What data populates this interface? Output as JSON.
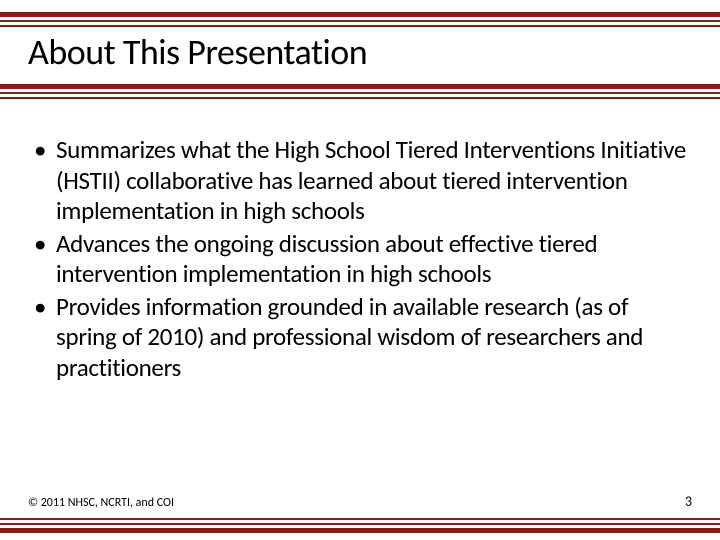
{
  "theme": {
    "stripe_color": "#8b1a1a",
    "background_color": "#ffffff",
    "text_color": "#000000",
    "font_family": "Calibri"
  },
  "title": "About This Presentation",
  "bullets": [
    "Summarizes what the High School Tiered Interventions Initiative (HSTII) collaborative has learned about tiered intervention implementation in high schools",
    "Advances the ongoing discussion about effective tiered intervention implementation in high schools",
    "Provides information grounded in available research (as of spring of 2010) and professional wisdom of researchers and practitioners"
  ],
  "footer": {
    "copyright": "© 2011 NHSC, NCRTI, and COI",
    "page_number": "3"
  }
}
